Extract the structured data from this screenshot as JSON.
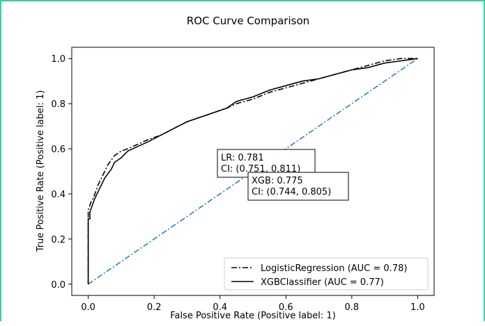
{
  "chart_data": {
    "type": "line",
    "title": "ROC Curve Comparison",
    "xlabel": "False Positive Rate (Positive label: 1)",
    "ylabel": "True Positive Rate (Positive label: 1)",
    "xlim": [
      -0.05,
      1.05
    ],
    "ylim": [
      -0.05,
      1.05
    ],
    "xticks": [
      0.0,
      0.2,
      0.4,
      0.6,
      0.8,
      1.0
    ],
    "xtick_labels": [
      "0.0",
      "0.2",
      "0.4",
      "0.6",
      "0.8",
      "1.0"
    ],
    "yticks": [
      0.0,
      0.2,
      0.4,
      0.6,
      0.8,
      1.0
    ],
    "ytick_labels": [
      "0.0",
      "0.2",
      "0.4",
      "0.6",
      "0.8",
      "1.0"
    ],
    "grid": false,
    "legend_position": "bottom-right",
    "series": [
      {
        "name": "LogisticRegression (AUC = 0.78)",
        "color": "#000000",
        "dash": "dashdot",
        "x": [
          0,
          0,
          0.005,
          0.01,
          0.015,
          0.02,
          0.03,
          0.04,
          0.05,
          0.06,
          0.07,
          0.08,
          0.1,
          0.12,
          0.15,
          0.18,
          0.22,
          0.26,
          0.3,
          0.34,
          0.38,
          0.42,
          0.45,
          0.5,
          0.55,
          0.6,
          0.65,
          0.7,
          0.75,
          0.8,
          0.85,
          0.9,
          0.95,
          1.0
        ],
        "y": [
          0,
          0.33,
          0.35,
          0.37,
          0.38,
          0.4,
          0.44,
          0.47,
          0.5,
          0.53,
          0.55,
          0.57,
          0.59,
          0.6,
          0.62,
          0.64,
          0.66,
          0.69,
          0.72,
          0.74,
          0.76,
          0.78,
          0.8,
          0.82,
          0.85,
          0.87,
          0.89,
          0.91,
          0.93,
          0.95,
          0.97,
          0.99,
          1.0,
          1.0
        ]
      },
      {
        "name": "XGBClassifier (AUC = 0.77)",
        "color": "#000000",
        "dash": "solid",
        "x": [
          0,
          0,
          0.005,
          0.005,
          0.01,
          0.015,
          0.02,
          0.03,
          0.04,
          0.05,
          0.06,
          0.07,
          0.08,
          0.1,
          0.12,
          0.15,
          0.18,
          0.22,
          0.26,
          0.3,
          0.34,
          0.38,
          0.42,
          0.45,
          0.5,
          0.55,
          0.6,
          0.65,
          0.7,
          0.75,
          0.8,
          0.85,
          0.9,
          0.95,
          1.0
        ],
        "y": [
          0,
          0.29,
          0.29,
          0.32,
          0.34,
          0.36,
          0.38,
          0.41,
          0.44,
          0.47,
          0.49,
          0.51,
          0.54,
          0.56,
          0.59,
          0.61,
          0.63,
          0.66,
          0.69,
          0.72,
          0.74,
          0.76,
          0.78,
          0.81,
          0.83,
          0.86,
          0.88,
          0.9,
          0.91,
          0.93,
          0.95,
          0.96,
          0.98,
          0.99,
          1.0
        ]
      },
      {
        "name": "chance",
        "color": "#1f77b4",
        "dash": "dashdot",
        "x": [
          0,
          1
        ],
        "y": [
          0,
          1
        ]
      }
    ],
    "annotations": [
      {
        "lines": [
          "LR: 0.781",
          "CI: (0.751, 0.811)"
        ]
      },
      {
        "lines": [
          "XGB: 0.775",
          "CI: (0.744, 0.805)"
        ]
      }
    ],
    "legend": [
      {
        "label": "LogisticRegression (AUC = 0.78)",
        "dash": "dashdot"
      },
      {
        "label": "XGBClassifier (AUC = 0.77)",
        "dash": "solid"
      }
    ]
  }
}
